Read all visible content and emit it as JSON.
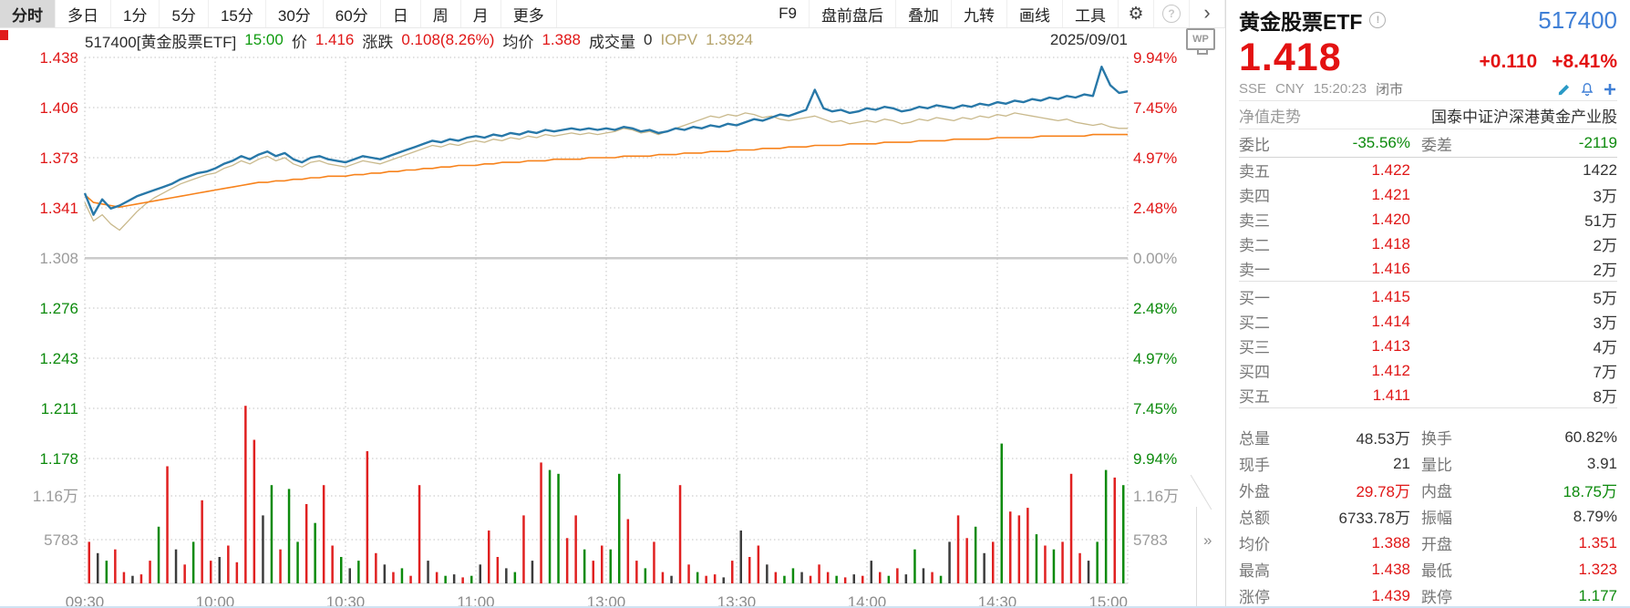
{
  "toolbar": {
    "items_left": [
      "分时",
      "多日",
      "1分",
      "5分",
      "15分",
      "30分",
      "60分",
      "日",
      "周",
      "月",
      "更多"
    ],
    "items_right": [
      "F9",
      "盘前盘后",
      "叠加",
      "九转",
      "画线",
      "工具"
    ],
    "gear_glyph": "⚙",
    "help_glyph": "?",
    "chevron_glyph": "›"
  },
  "chart_header": {
    "symbol": "517400[黄金股票ETF]",
    "time": "15:00",
    "price_label": "价",
    "price": "1.416",
    "change_label": "涨跌",
    "change": "0.108(8.26%)",
    "avg_label": "均价",
    "avg": "1.388",
    "volume_label": "成交量",
    "volume": "0",
    "iopv_label": "IOPV",
    "iopv": "1.3924",
    "date": "2025/09/01",
    "wp_badge": "WP"
  },
  "chart_data": {
    "type": "line",
    "title": "517400 黄金股票ETF 分时走势 2025/09/01",
    "prev_close": 1.308,
    "price_range": [
      1.178,
      1.438
    ],
    "x_ticks": [
      "09:30",
      "10:00",
      "10:30",
      "11:00",
      "13:00",
      "13:30",
      "14:00",
      "14:30",
      "15:00"
    ],
    "y_axis_left_price": [
      "1.438",
      "1.406",
      "1.373",
      "1.341",
      "1.308",
      "1.276",
      "1.243",
      "1.211",
      "1.178"
    ],
    "y_axis_right_pct": [
      "9.94%",
      "7.45%",
      "4.97%",
      "2.48%",
      "0.00%",
      "2.48%",
      "4.97%",
      "7.45%",
      "9.94%"
    ],
    "vol_axis_labels": [
      "1.16万",
      "5783"
    ],
    "grid": true,
    "legend_position": "none",
    "series": [
      {
        "name": "价格",
        "color": "#2878a8",
        "values": [
          1.35,
          1.336,
          1.346,
          1.34,
          1.342,
          1.345,
          1.348,
          1.35,
          1.352,
          1.354,
          1.356,
          1.359,
          1.361,
          1.363,
          1.364,
          1.366,
          1.369,
          1.371,
          1.374,
          1.372,
          1.375,
          1.377,
          1.374,
          1.376,
          1.372,
          1.37,
          1.373,
          1.374,
          1.372,
          1.371,
          1.37,
          1.372,
          1.374,
          1.373,
          1.372,
          1.374,
          1.376,
          1.378,
          1.38,
          1.382,
          1.384,
          1.383,
          1.385,
          1.384,
          1.386,
          1.387,
          1.386,
          1.388,
          1.387,
          1.389,
          1.388,
          1.39,
          1.389,
          1.391,
          1.39,
          1.391,
          1.392,
          1.391,
          1.392,
          1.391,
          1.392,
          1.391,
          1.393,
          1.392,
          1.39,
          1.391,
          1.389,
          1.39,
          1.392,
          1.391,
          1.393,
          1.392,
          1.394,
          1.393,
          1.395,
          1.394,
          1.396,
          1.398,
          1.397,
          1.399,
          1.401,
          1.4,
          1.402,
          1.404,
          1.417,
          1.405,
          1.403,
          1.404,
          1.402,
          1.403,
          1.405,
          1.404,
          1.406,
          1.405,
          1.403,
          1.404,
          1.406,
          1.405,
          1.407,
          1.406,
          1.405,
          1.407,
          1.406,
          1.408,
          1.407,
          1.409,
          1.408,
          1.41,
          1.409,
          1.411,
          1.41,
          1.412,
          1.411,
          1.413,
          1.412,
          1.414,
          1.413,
          1.432,
          1.42,
          1.415,
          1.416
        ]
      },
      {
        "name": "IOPV",
        "color": "#c9b98c",
        "values": [
          1.344,
          1.332,
          1.336,
          1.33,
          1.326,
          1.332,
          1.338,
          1.343,
          1.347,
          1.35,
          1.353,
          1.356,
          1.358,
          1.36,
          1.362,
          1.363,
          1.366,
          1.368,
          1.371,
          1.369,
          1.372,
          1.374,
          1.371,
          1.373,
          1.369,
          1.367,
          1.37,
          1.371,
          1.369,
          1.368,
          1.367,
          1.369,
          1.371,
          1.37,
          1.369,
          1.371,
          1.373,
          1.375,
          1.377,
          1.379,
          1.381,
          1.38,
          1.382,
          1.381,
          1.383,
          1.384,
          1.383,
          1.385,
          1.384,
          1.386,
          1.385,
          1.387,
          1.386,
          1.388,
          1.387,
          1.388,
          1.389,
          1.388,
          1.389,
          1.388,
          1.389,
          1.39,
          1.392,
          1.391,
          1.389,
          1.39,
          1.388,
          1.39,
          1.392,
          1.394,
          1.396,
          1.398,
          1.4,
          1.399,
          1.401,
          1.4,
          1.402,
          1.401,
          1.399,
          1.4,
          1.398,
          1.397,
          1.398,
          1.399,
          1.4,
          1.398,
          1.396,
          1.397,
          1.395,
          1.396,
          1.397,
          1.396,
          1.398,
          1.397,
          1.395,
          1.396,
          1.398,
          1.397,
          1.399,
          1.398,
          1.397,
          1.399,
          1.398,
          1.4,
          1.399,
          1.401,
          1.4,
          1.402,
          1.401,
          1.4,
          1.399,
          1.398,
          1.397,
          1.398,
          1.396,
          1.395,
          1.394,
          1.395,
          1.393,
          1.392,
          1.392
        ]
      },
      {
        "name": "均价",
        "color": "#f7821b",
        "values": [
          1.349,
          1.344,
          1.343,
          1.342,
          1.341,
          1.342,
          1.343,
          1.344,
          1.345,
          1.346,
          1.347,
          1.348,
          1.349,
          1.35,
          1.351,
          1.352,
          1.353,
          1.354,
          1.355,
          1.356,
          1.357,
          1.357,
          1.358,
          1.358,
          1.359,
          1.359,
          1.36,
          1.36,
          1.361,
          1.361,
          1.361,
          1.362,
          1.362,
          1.363,
          1.363,
          1.364,
          1.364,
          1.365,
          1.365,
          1.366,
          1.366,
          1.367,
          1.367,
          1.368,
          1.368,
          1.368,
          1.369,
          1.369,
          1.37,
          1.37,
          1.37,
          1.371,
          1.371,
          1.371,
          1.372,
          1.372,
          1.372,
          1.372,
          1.373,
          1.373,
          1.373,
          1.373,
          1.374,
          1.374,
          1.374,
          1.374,
          1.375,
          1.375,
          1.375,
          1.376,
          1.376,
          1.376,
          1.377,
          1.377,
          1.377,
          1.378,
          1.378,
          1.378,
          1.379,
          1.379,
          1.379,
          1.38,
          1.38,
          1.38,
          1.381,
          1.381,
          1.381,
          1.381,
          1.382,
          1.382,
          1.382,
          1.382,
          1.383,
          1.383,
          1.383,
          1.383,
          1.384,
          1.384,
          1.384,
          1.384,
          1.385,
          1.385,
          1.385,
          1.385,
          1.385,
          1.386,
          1.386,
          1.386,
          1.386,
          1.386,
          1.387,
          1.387,
          1.387,
          1.387,
          1.387,
          1.387,
          1.388,
          1.388,
          1.388,
          1.388,
          1.388
        ]
      }
    ],
    "volume": {
      "unit": "万",
      "values": [
        0.55,
        0.4,
        0.3,
        0.45,
        0.15,
        0.1,
        0.12,
        0.3,
        0.75,
        1.55,
        0.45,
        0.25,
        0.55,
        1.1,
        0.3,
        0.35,
        0.5,
        0.28,
        2.35,
        1.9,
        0.9,
        1.3,
        0.45,
        1.25,
        0.55,
        1.05,
        0.8,
        1.3,
        0.5,
        0.35,
        0.2,
        0.3,
        1.75,
        0.4,
        0.25,
        0.15,
        0.2,
        0.1,
        1.3,
        0.3,
        0.15,
        0.1,
        0.12,
        0.08,
        0.1,
        0.25,
        0.7,
        0.35,
        0.2,
        0.15,
        0.9,
        0.3,
        1.6,
        1.5,
        1.45,
        0.6,
        0.9,
        0.45,
        0.3,
        0.5,
        0.45,
        1.45,
        0.85,
        0.3,
        0.2,
        0.55,
        0.15,
        0.1,
        1.3,
        0.25,
        0.15,
        0.1,
        0.12,
        0.08,
        0.3,
        0.7,
        0.35,
        0.5,
        0.25,
        0.15,
        0.1,
        0.2,
        0.15,
        0.1,
        0.25,
        0.15,
        0.1,
        0.08,
        0.12,
        0.1,
        0.3,
        0.15,
        0.1,
        0.2,
        0.12,
        0.45,
        0.2,
        0.15,
        0.1,
        0.55,
        0.9,
        0.6,
        0.75,
        0.4,
        0.55,
        1.85,
        0.95,
        0.9,
        1.0,
        0.65,
        0.5,
        0.45,
        0.55,
        1.45,
        0.4,
        0.3,
        0.55,
        1.5,
        1.4,
        1.3
      ],
      "colors": "rkgrrkrrgrkrgrrkrrrrkgrggrgrrgkgrrkrgrrkrgkrgkrrkgrkrggrrgrrggrrgrrkrrgrrkrkrrkrggkrrrgrkrkrgrkgkrgkrrgkrgrrrgrgrrrkggrg"
    }
  },
  "quote": {
    "name": "黄金股票ETF",
    "info_glyph": "!",
    "code": "517400",
    "price": "1.418",
    "change": "+0.110",
    "change_pct": "+8.41%",
    "exchange": "SSE",
    "currency": "CNY",
    "quote_time": "15:20:23",
    "market_status": "闭市",
    "nav_label": "净值走势",
    "nav_value": "国泰中证沪深港黄金产业股",
    "weibi_label": "委比",
    "weibi_value": "-35.56%",
    "weicha_label": "委差",
    "weicha_value": "-2119",
    "asks": [
      {
        "label": "卖五",
        "price": "1.422",
        "vol": "1422"
      },
      {
        "label": "卖四",
        "price": "1.421",
        "vol": "3万"
      },
      {
        "label": "卖三",
        "price": "1.420",
        "vol": "51万"
      },
      {
        "label": "卖二",
        "price": "1.418",
        "vol": "2万"
      },
      {
        "label": "卖一",
        "price": "1.416",
        "vol": "2万"
      }
    ],
    "bids": [
      {
        "label": "买一",
        "price": "1.415",
        "vol": "5万"
      },
      {
        "label": "买二",
        "price": "1.414",
        "vol": "3万"
      },
      {
        "label": "买三",
        "price": "1.413",
        "vol": "4万"
      },
      {
        "label": "买四",
        "price": "1.412",
        "vol": "7万"
      },
      {
        "label": "买五",
        "price": "1.411",
        "vol": "8万"
      }
    ],
    "stats": [
      {
        "l1": "总量",
        "v1": "48.53万",
        "l2": "换手",
        "v2": "60.82%"
      },
      {
        "l1": "现手",
        "v1": "21",
        "l2": "量比",
        "v2": "3.91"
      },
      {
        "l1": "外盘",
        "v1": "29.78万",
        "l2": "内盘",
        "v2": "18.75万"
      },
      {
        "l1": "总额",
        "v1": "6733.78万",
        "l2": "振幅",
        "v2": "8.79%"
      },
      {
        "l1": "均价",
        "v1": "1.388",
        "l2": "开盘",
        "v2": "1.351"
      },
      {
        "l1": "最高",
        "v1": "1.438",
        "l2": "最低",
        "v2": "1.323"
      },
      {
        "l1": "涨停",
        "v1": "1.439",
        "l2": "跌停",
        "v2": "1.177"
      }
    ],
    "expand_glyph": "»"
  },
  "colors": {
    "up_red": "#e01616",
    "down_green": "#0c8a0c",
    "code_blue": "#3f7fd6",
    "price_line": "#2878a8",
    "avg_line": "#f7821b",
    "iopv_line": "#c9b98c",
    "iopv_text": "#b5a36b"
  }
}
